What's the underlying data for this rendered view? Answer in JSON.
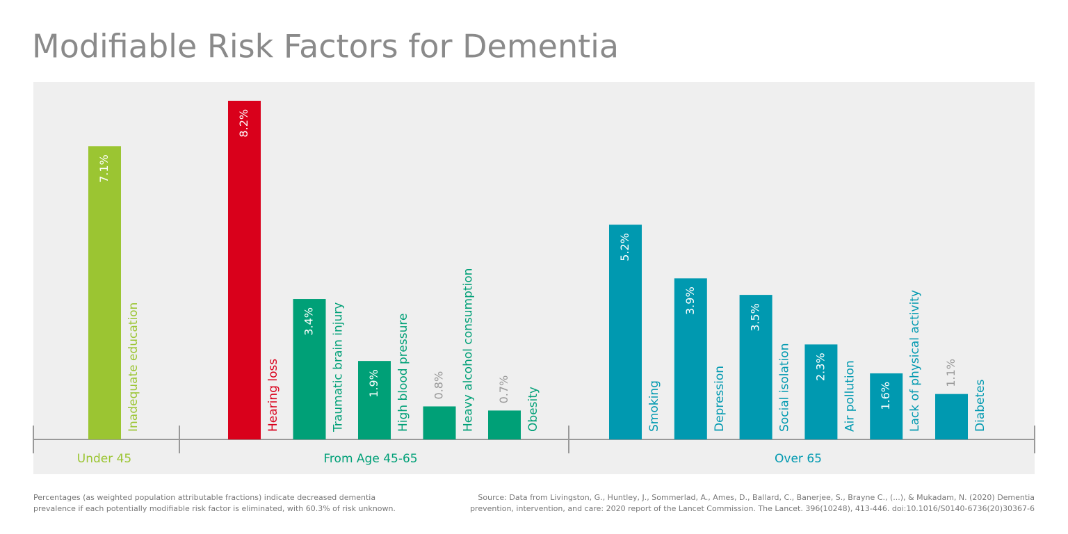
{
  "chart_data": {
    "type": "bar",
    "title": "Modifiable Risk Factors for Dementia",
    "groups": [
      {
        "name": "Under 45",
        "color": "#9bc532",
        "bars": [
          {
            "category": "Inadequate education",
            "value": 7.1,
            "value_label": "7.1%",
            "color": "#9bc532"
          }
        ]
      },
      {
        "name": "From Age 45-65",
        "color": "#00a077",
        "bars": [
          {
            "category": "Hearing loss",
            "value": 8.2,
            "value_label": "8.2%",
            "color": "#d9001b"
          },
          {
            "category": "Traumatic brain injury",
            "value": 3.4,
            "value_label": "3.4%",
            "color": "#00a077"
          },
          {
            "category": "High blood pressure",
            "value": 1.9,
            "value_label": "1.9%",
            "color": "#00a077"
          },
          {
            "category": "Heavy alcohol consumption",
            "value": 0.8,
            "value_label": "0.8%",
            "color": "#00a077"
          },
          {
            "category": "Obesity",
            "value": 0.7,
            "value_label": "0.7%",
            "color": "#00a077"
          }
        ]
      },
      {
        "name": "Over 65",
        "color": "#0099b0",
        "bars": [
          {
            "category": "Smoking",
            "value": 5.2,
            "value_label": "5.2%",
            "color": "#0099b0"
          },
          {
            "category": "Depression",
            "value": 3.9,
            "value_label": "3.9%",
            "color": "#0099b0"
          },
          {
            "category": "Social isolation",
            "value": 3.5,
            "value_label": "3.5%",
            "color": "#0099b0"
          },
          {
            "category": "Air pollution",
            "value": 2.3,
            "value_label": "2.3%",
            "color": "#0099b0"
          },
          {
            "category": "Lack of physical activity",
            "value": 1.6,
            "value_label": "1.6%",
            "color": "#0099b0"
          },
          {
            "category": "Diabetes",
            "value": 1.1,
            "value_label": "1.1%",
            "color": "#0099b0"
          }
        ]
      }
    ],
    "footnote": [
      "Percentages (as weighted population attributable fractions) indicate decreased dementia",
      "prevalence if each potentially modifiable risk factor is eliminated, with 60.3% of risk unknown."
    ],
    "source": [
      "Source: Data from Livingston, G., Huntley, J., Sommerlad, A., Ames, D., Ballard, C., Banerjee, S., Brayne C., (...), & Mukadam, N. (2020) Dementia",
      "prevention, intervention, and care: 2020 report of the Lancet Commission. The Lancet. 396(10248), 413-446. doi:10.1016/S0140-6736(20)30367-6"
    ]
  }
}
